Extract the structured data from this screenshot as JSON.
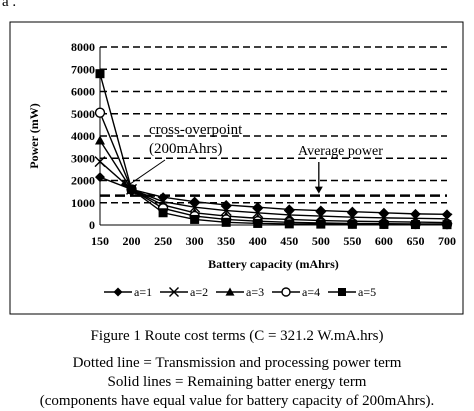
{
  "page": {
    "top_fragment": "a .",
    "figure_caption": "Figure 1  Route cost terms (C = 321.2 W.mA.hrs)",
    "notes": [
      "Dotted line = Transmission and processing power term",
      "Solid lines = Remaining batter energy term",
      "(components have equal value for battery capacity of 200mAhrs)."
    ]
  },
  "chart_data": {
    "type": "line",
    "xlabel": "Battery capacity (mAhrs)",
    "ylabel": "Power (mW)",
    "x": [
      150,
      200,
      250,
      300,
      350,
      400,
      450,
      500,
      550,
      600,
      650,
      700
    ],
    "ylim": [
      0,
      8000
    ],
    "yticks": [
      0,
      1000,
      2000,
      3000,
      4000,
      5000,
      6000,
      7000,
      8000
    ],
    "grid": true,
    "legend_position": "bottom",
    "colors": {
      "series": "#000000",
      "grid": "#000000",
      "background": "#ffffff"
    },
    "series": [
      {
        "name": "a=1",
        "marker": "diamond",
        "values": [
          2150,
          1600,
          1250,
          1050,
          900,
          800,
          700,
          650,
          600,
          550,
          500,
          480
        ]
      },
      {
        "name": "a=2",
        "marker": "x",
        "values": [
          2850,
          1600,
          1050,
          800,
          650,
          550,
          450,
          400,
          350,
          320,
          300,
          280
        ]
      },
      {
        "name": "a=3",
        "marker": "triangle",
        "values": [
          3800,
          1600,
          900,
          550,
          400,
          300,
          250,
          200,
          170,
          150,
          130,
          110
        ]
      },
      {
        "name": "a=4",
        "marker": "circle",
        "values": [
          5050,
          1600,
          750,
          400,
          250,
          170,
          120,
          90,
          70,
          60,
          50,
          45
        ]
      },
      {
        "name": "a=5",
        "marker": "square",
        "values": [
          6800,
          1600,
          550,
          250,
          120,
          70,
          50,
          40,
          30,
          25,
          20,
          15
        ]
      }
    ],
    "reference_line": {
      "value": 1320
    },
    "annotations": [
      {
        "text": "cross-overpoint",
        "target": {
          "x": 200,
          "y": 1600
        }
      },
      {
        "text": "(200mAhrs)"
      },
      {
        "text": "Average power",
        "target": {
          "x": 500,
          "y": 1320
        }
      }
    ]
  }
}
